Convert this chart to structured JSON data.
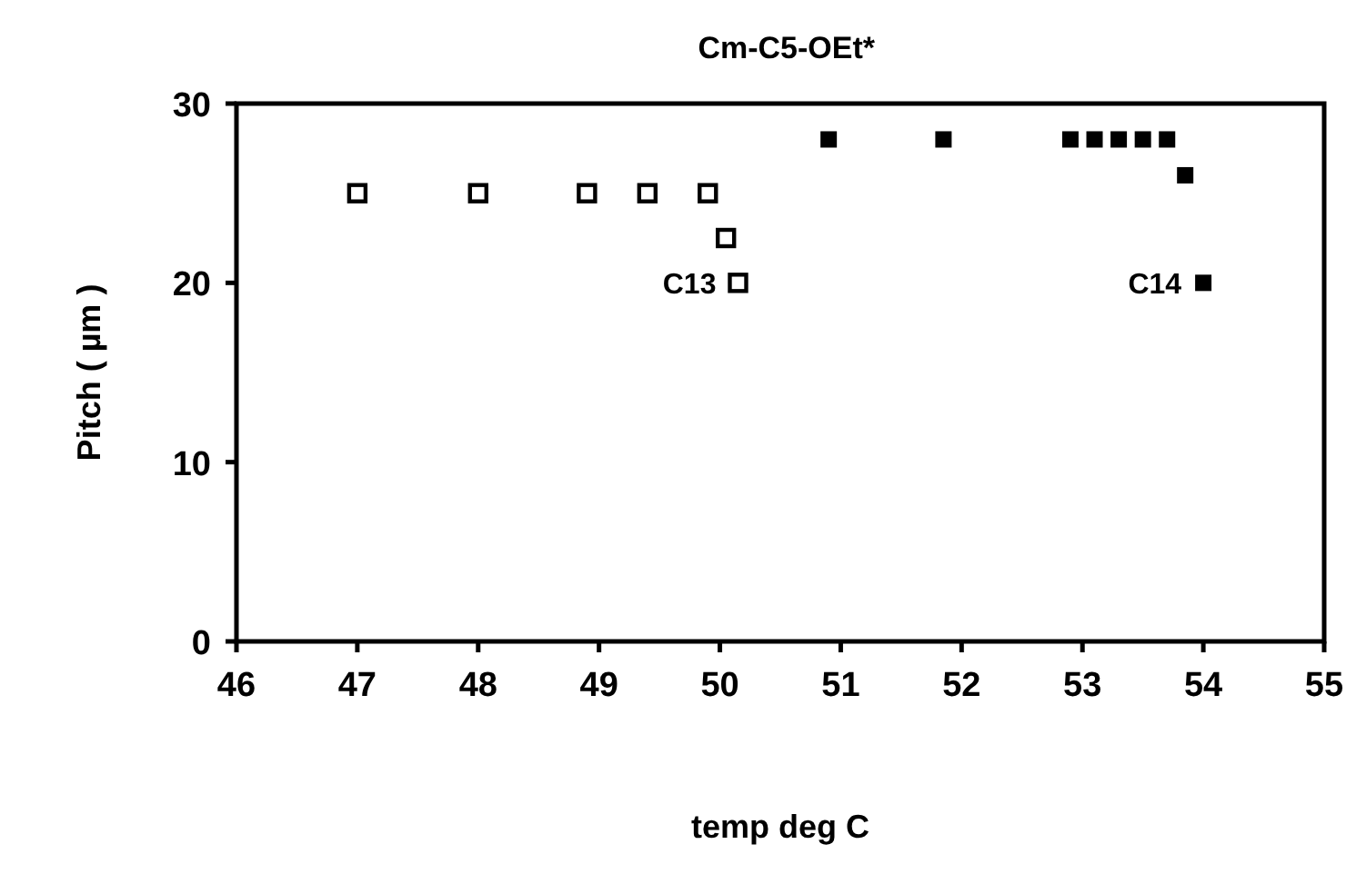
{
  "chart_data": {
    "type": "scatter",
    "title": "Cm-C5-OEt*",
    "xlabel": "temp deg C",
    "ylabel": "Pitch ( µm )",
    "xlim": [
      46,
      55
    ],
    "xticks": [
      46,
      47,
      48,
      49,
      50,
      51,
      52,
      53,
      54,
      55
    ],
    "ylim": [
      0,
      30
    ],
    "yticks": [
      0,
      10,
      20,
      30
    ],
    "grid": false,
    "marker": "square",
    "series": [
      {
        "name": "C13",
        "color": "#000000",
        "marker": "square-open",
        "x": [
          47,
          48,
          48.9,
          49.4,
          49.9,
          50.05,
          50.15
        ],
        "values": [
          25,
          25,
          25,
          25,
          25,
          22.5,
          20
        ]
      },
      {
        "name": "C14",
        "color": "#000000",
        "x": [
          50.9,
          51.85,
          52.9,
          53.1,
          53.3,
          53.5,
          53.7,
          53.85,
          54.0
        ],
        "values": [
          28,
          28,
          28,
          28,
          28,
          28,
          28,
          26,
          20
        ]
      }
    ]
  }
}
